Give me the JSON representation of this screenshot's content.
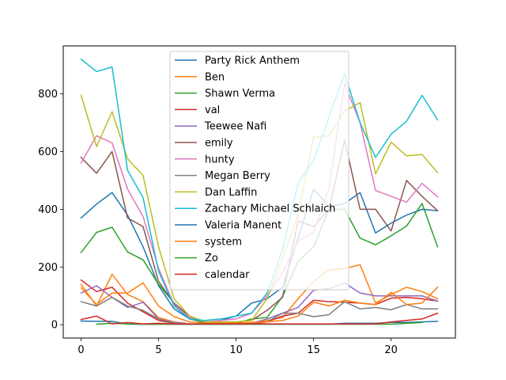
{
  "chart_data": {
    "type": "line",
    "xlim": [
      -1.15,
      24.15
    ],
    "ylim": [
      -46,
      966
    ],
    "x": [
      0,
      1,
      2,
      3,
      4,
      5,
      6,
      7,
      8,
      9,
      10,
      11,
      12,
      13,
      14,
      15,
      16,
      17,
      18,
      19,
      20,
      21,
      22,
      23
    ],
    "x_ticks": [
      0,
      5,
      10,
      15,
      20
    ],
    "y_ticks": [
      0,
      200,
      400,
      600,
      800
    ],
    "grid": false,
    "legend_position": "upper center",
    "series": [
      {
        "name": "Party Rick Anthem",
        "color": "#1f77b4",
        "x": [
          0,
          1,
          2,
          3,
          4,
          5,
          6,
          7,
          8,
          9,
          10,
          11,
          12,
          13,
          14,
          15,
          16,
          17,
          18,
          19,
          20,
          21,
          22,
          23
        ],
        "values": [
          370,
          418,
          458,
          380,
          270,
          135,
          55,
          20,
          8,
          15,
          30,
          75,
          90,
          130,
          300,
          470,
          410,
          420,
          458,
          318,
          352,
          380,
          400,
          395
        ]
      },
      {
        "name": "Ben",
        "color": "#ff7f0e",
        "x": [
          0,
          1,
          2,
          3,
          4,
          5,
          6,
          7,
          8,
          9,
          10,
          11,
          12,
          13,
          14,
          15,
          16,
          17,
          18,
          19,
          20,
          21,
          22,
          23
        ],
        "values": [
          140,
          65,
          175,
          105,
          80,
          25,
          10,
          3,
          2,
          2,
          3,
          8,
          15,
          25,
          90,
          150,
          190,
          195,
          208,
          75,
          105,
          130,
          115,
          90
        ]
      },
      {
        "name": "Shawn Verma",
        "color": "#2ca02c",
        "x": [
          0,
          1,
          2,
          3,
          4,
          5,
          6,
          7,
          8,
          9,
          10,
          11,
          12,
          13,
          14,
          15,
          16,
          17,
          18,
          19,
          20,
          21,
          22,
          23
        ],
        "values": [
          250,
          320,
          338,
          252,
          225,
          140,
          75,
          22,
          5,
          5,
          5,
          20,
          25,
          98,
          220,
          270,
          400,
          400,
          300,
          277,
          308,
          342,
          420,
          270
        ]
      },
      {
        "name": "val",
        "color": "#d62728",
        "x": [
          0,
          1,
          2,
          3,
          4,
          5,
          6,
          7,
          8,
          9,
          10,
          11,
          12,
          13,
          14,
          15,
          16,
          17,
          18,
          19,
          20,
          21,
          22,
          23
        ],
        "values": [
          155,
          115,
          130,
          75,
          45,
          15,
          5,
          2,
          2,
          2,
          2,
          3,
          10,
          30,
          40,
          85,
          80,
          78,
          75,
          70,
          92,
          95,
          90,
          82
        ]
      },
      {
        "name": "Teewee Nafi",
        "color": "#9467bd",
        "x": [
          0,
          1,
          2,
          3,
          4,
          5,
          6,
          7,
          8,
          9,
          10,
          11,
          12,
          13,
          14,
          15,
          16,
          17,
          18,
          19,
          20,
          21,
          22,
          23
        ],
        "values": [
          110,
          135,
          95,
          60,
          78,
          20,
          8,
          3,
          2,
          2,
          3,
          5,
          20,
          40,
          60,
          120,
          125,
          145,
          110,
          100,
          100,
          100,
          100,
          82
        ]
      },
      {
        "name": "emily",
        "color": "#8c564b",
        "x": [
          0,
          1,
          2,
          3,
          4,
          5,
          6,
          7,
          8,
          9,
          10,
          11,
          12,
          13,
          14,
          15,
          16,
          17,
          18,
          19,
          20,
          21,
          22,
          23
        ],
        "values": [
          580,
          525,
          600,
          370,
          340,
          150,
          75,
          30,
          10,
          10,
          10,
          15,
          50,
          95,
          360,
          340,
          400,
          640,
          400,
          400,
          325,
          500,
          445,
          395
        ]
      },
      {
        "name": "hunty",
        "color": "#e377c2",
        "x": [
          0,
          1,
          2,
          3,
          4,
          5,
          6,
          7,
          8,
          9,
          10,
          11,
          12,
          13,
          14,
          15,
          16,
          17,
          18,
          19,
          20,
          21,
          22,
          23
        ],
        "values": [
          560,
          655,
          630,
          470,
          375,
          195,
          70,
          25,
          10,
          15,
          20,
          40,
          100,
          180,
          290,
          320,
          475,
          835,
          700,
          465,
          445,
          425,
          490,
          443
        ]
      },
      {
        "name": "Megan Berry",
        "color": "#7f7f7f",
        "x": [
          0,
          1,
          2,
          3,
          4,
          5,
          6,
          7,
          8,
          9,
          10,
          11,
          12,
          13,
          14,
          15,
          16,
          17,
          18,
          19,
          20,
          21,
          22,
          23
        ],
        "values": [
          80,
          65,
          95,
          65,
          50,
          20,
          5,
          2,
          2,
          2,
          2,
          5,
          10,
          40,
          40,
          28,
          35,
          80,
          55,
          60,
          52,
          70,
          55,
          55
        ]
      },
      {
        "name": "Dan Laffin",
        "color": "#bcbd22",
        "x": [
          0,
          1,
          2,
          3,
          4,
          5,
          6,
          7,
          8,
          9,
          10,
          11,
          12,
          13,
          14,
          15,
          16,
          17,
          18,
          19,
          20,
          21,
          22,
          23
        ],
        "values": [
          795,
          617,
          738,
          575,
          517,
          270,
          90,
          30,
          10,
          10,
          10,
          15,
          90,
          230,
          380,
          650,
          655,
          740,
          770,
          523,
          633,
          585,
          590,
          527
        ]
      },
      {
        "name": "Zachary Michael Schlaich",
        "color": "#17becf",
        "x": [
          0,
          1,
          2,
          3,
          4,
          5,
          6,
          7,
          8,
          9,
          10,
          11,
          12,
          13,
          14,
          15,
          16,
          17,
          18,
          19,
          20,
          21,
          22,
          23
        ],
        "values": [
          920,
          877,
          893,
          535,
          440,
          185,
          65,
          20,
          15,
          20,
          30,
          40,
          110,
          260,
          490,
          570,
          720,
          870,
          700,
          580,
          660,
          705,
          795,
          710
        ]
      },
      {
        "name": "Valeria Manent",
        "color": "#1f77b4",
        "x": [
          0,
          1,
          2,
          3,
          4,
          5,
          6,
          7,
          8,
          9,
          10,
          11,
          12,
          13,
          14,
          15,
          16,
          17,
          18,
          19,
          20,
          21,
          22,
          23
        ],
        "values": [
          13,
          12,
          12,
          2,
          2,
          2,
          2,
          2,
          2,
          2,
          2,
          2,
          2,
          2,
          2,
          2,
          2,
          5,
          5,
          5,
          8,
          8,
          10,
          12
        ]
      },
      {
        "name": "system",
        "color": "#ff7f0e",
        "x": [
          0,
          1,
          2,
          3,
          4,
          5,
          6,
          7,
          8,
          9,
          10,
          11,
          12,
          13,
          14,
          15,
          16,
          17,
          18,
          19,
          20,
          21,
          22,
          23
        ],
        "values": [
          128,
          70,
          110,
          110,
          145,
          65,
          28,
          10,
          5,
          5,
          5,
          8,
          10,
          15,
          30,
          78,
          65,
          85,
          75,
          70,
          112,
          70,
          75,
          130
        ]
      },
      {
        "name": "Zo",
        "color": "#2ca02c",
        "x": [
          1,
          2,
          3,
          4,
          5,
          6,
          7,
          8,
          9,
          10,
          11,
          12,
          13,
          14,
          15,
          16,
          17,
          18,
          19,
          20,
          21,
          22
        ],
        "values": [
          2,
          5,
          3,
          2,
          2,
          2,
          2,
          2,
          2,
          2,
          2,
          2,
          2,
          2,
          2,
          2,
          2,
          2,
          2,
          2,
          5,
          8
        ]
      },
      {
        "name": "calendar",
        "color": "#d62728",
        "x": [
          0,
          1,
          2,
          3,
          4,
          5,
          6,
          7,
          8,
          9,
          10,
          11,
          12,
          13,
          14,
          15,
          16,
          17,
          18,
          19,
          20,
          21,
          22,
          23
        ],
        "values": [
          18,
          30,
          3,
          8,
          3,
          5,
          3,
          3,
          3,
          3,
          3,
          3,
          3,
          3,
          3,
          3,
          3,
          3,
          3,
          3,
          10,
          15,
          20,
          40
        ]
      }
    ]
  }
}
